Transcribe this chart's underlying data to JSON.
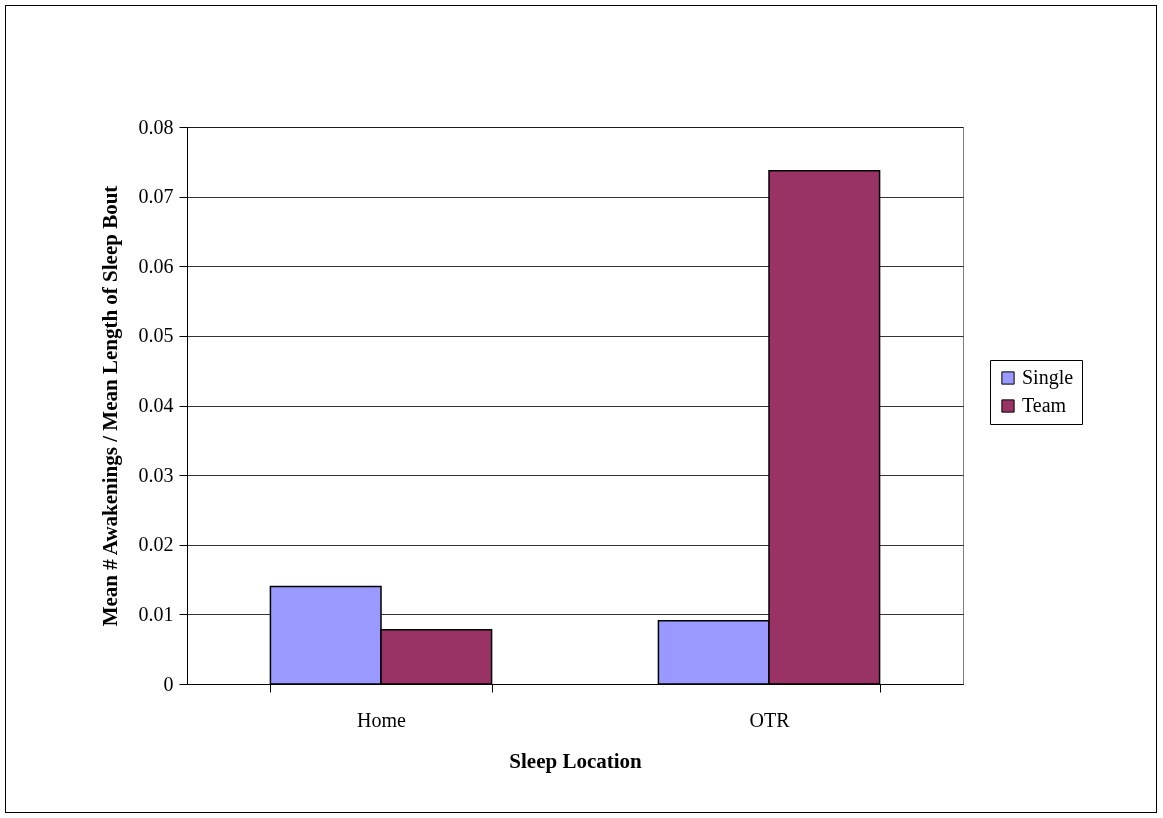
{
  "chart_data": {
    "type": "bar",
    "categories": [
      "Home",
      "OTR"
    ],
    "xlabel": "Sleep Location",
    "ylabel": "Mean # Awakenings / Mean Length of Sleep Bout",
    "series": [
      {
        "name": "Single",
        "color": "#9999ff",
        "values": [
          0.014,
          0.0091
        ]
      },
      {
        "name": "Team",
        "color": "#993366",
        "values": [
          0.0078,
          0.0737
        ]
      }
    ],
    "ylim": [
      0,
      0.08
    ],
    "yticks": [
      0,
      0.01,
      0.02,
      0.03,
      0.04,
      0.05,
      0.06,
      0.07,
      0.08
    ],
    "grid": "y",
    "legend": "right"
  }
}
